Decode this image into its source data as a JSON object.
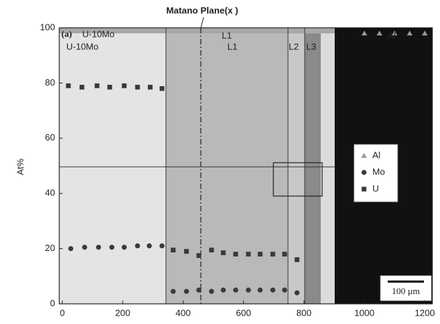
{
  "chart_data": {
    "type": "scatter",
    "ylabel": "At%",
    "xlim": [
      -10,
      1225
    ],
    "ylim": [
      0,
      100
    ],
    "xticks": [
      0,
      200,
      400,
      600,
      800,
      1000,
      1200
    ],
    "yticks": [
      0,
      20,
      40,
      60,
      80,
      100
    ],
    "legend": "right",
    "series": [
      {
        "name": "Al",
        "color": "#9a9a9a",
        "marker": "triangle",
        "x": [
          1000,
          1050,
          1100,
          1150,
          1200
        ],
        "values": [
          98,
          98,
          98,
          98,
          98
        ]
      },
      {
        "name": "Mo",
        "color": "#3a3a3a",
        "marker": "circle",
        "x": [
          28,
          74,
          120,
          164,
          205,
          249,
          288,
          330,
          367,
          411,
          452,
          494,
          533,
          574,
          616,
          655,
          697,
          736,
          777
        ],
        "values": [
          20,
          20.5,
          20.5,
          20.5,
          20.5,
          21,
          21,
          21,
          4.5,
          4.5,
          5,
          4.5,
          5,
          5,
          5,
          5,
          5,
          5,
          4
        ]
      },
      {
        "name": "U",
        "color": "#3a3a3a",
        "marker": "square",
        "x": [
          20,
          65,
          115,
          157,
          205,
          249,
          291,
          330,
          367,
          411,
          452,
          494,
          533,
          574,
          616,
          655,
          697,
          736,
          777
        ],
        "values": [
          79,
          78.5,
          79,
          78.5,
          79,
          78.5,
          78.5,
          78,
          19.5,
          19,
          17.5,
          19.5,
          18.5,
          18,
          18,
          18,
          18,
          18,
          16
        ]
      }
    ],
    "annotations": [
      "Matano Plane(x )",
      "(a)",
      "U-10Mo",
      "U-10Mo",
      "L1",
      "L1",
      "L2",
      "L3",
      "Al",
      "100 µm"
    ]
  }
}
